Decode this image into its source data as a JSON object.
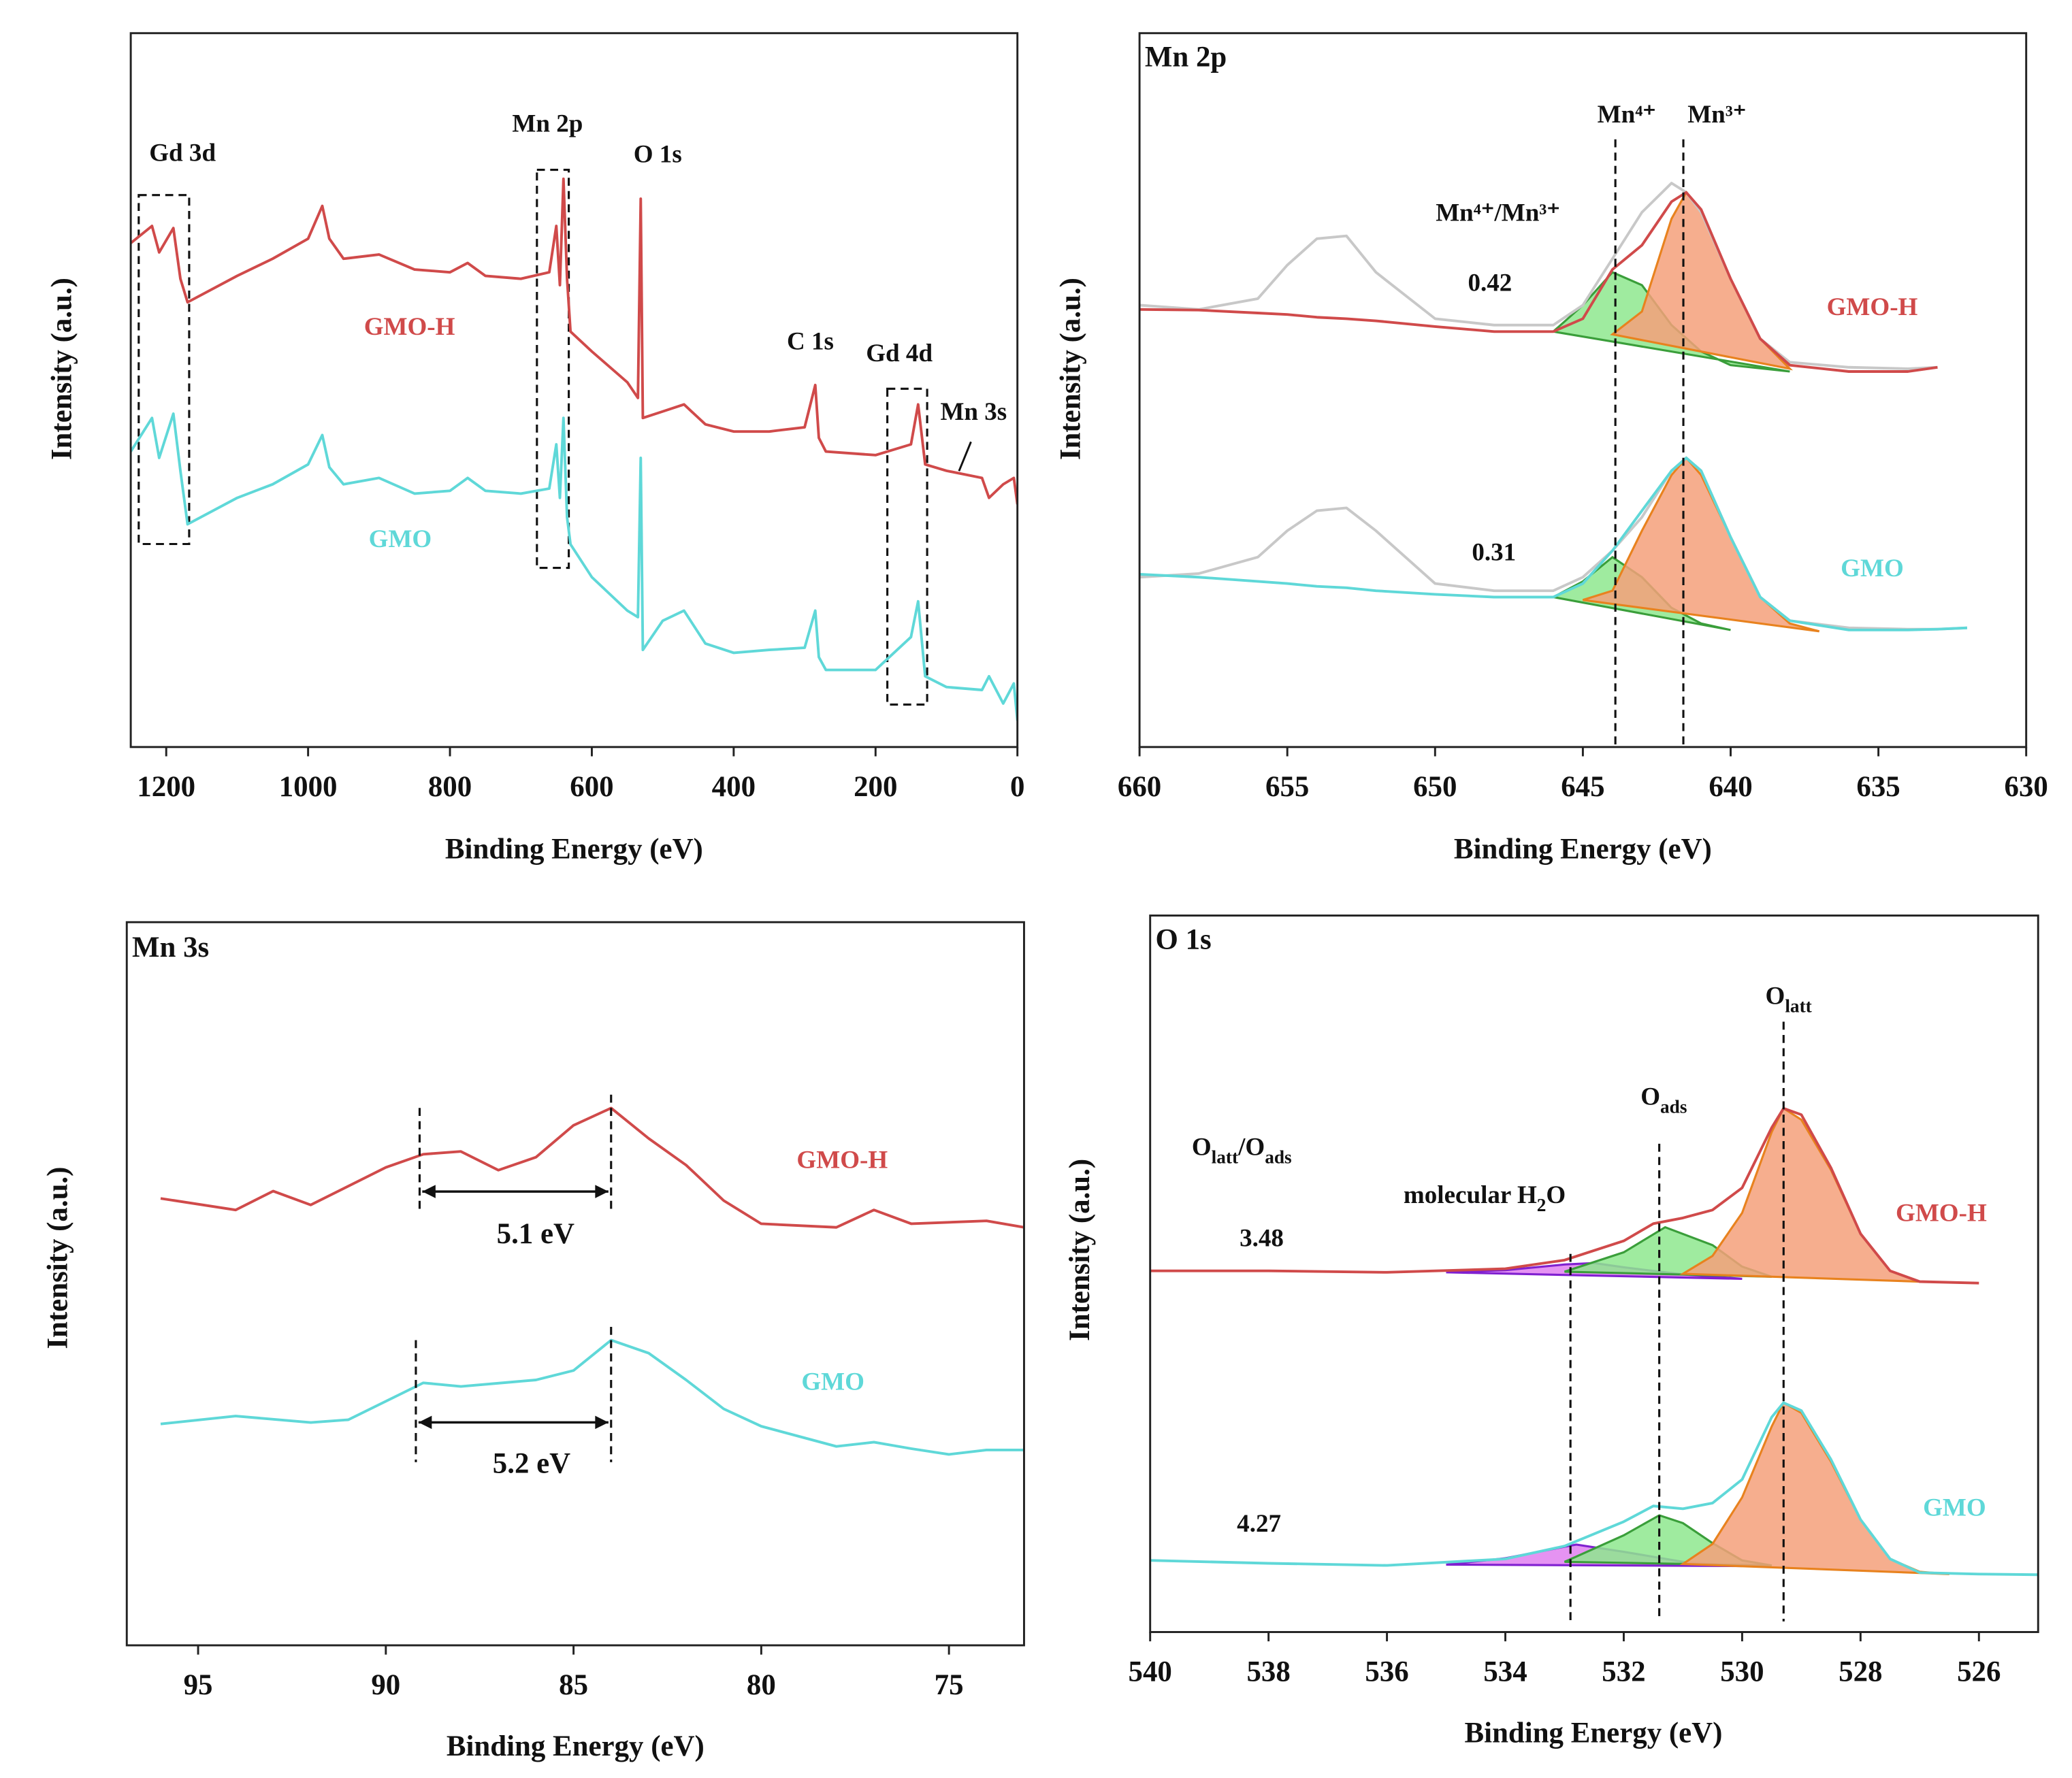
{
  "chart_data": [
    {
      "type": "line",
      "xlabel": "Binding Energy (eV)",
      "ylabel": "Intensity (a.u.)",
      "xlim": [
        1250,
        0
      ],
      "xticks": [
        1200,
        1000,
        800,
        600,
        400,
        200,
        0
      ],
      "ylim": [
        0,
        100
      ],
      "annotations": [
        "Gd 3d",
        "Mn 2p",
        "O 1s",
        "C 1s",
        "Gd 4d",
        "Mn 3s"
      ],
      "series": [
        {
          "name": "GMO-H",
          "color": "#d04a4a",
          "x": [
            1250,
            1220,
            1210,
            1190,
            1180,
            1170,
            1100,
            1050,
            1000,
            980,
            970,
            950,
            900,
            850,
            800,
            775,
            750,
            700,
            660,
            650,
            645,
            640,
            635,
            630,
            600,
            550,
            535,
            531,
            528,
            500,
            470,
            440,
            400,
            350,
            300,
            285,
            280,
            270,
            200,
            150,
            140,
            130,
            100,
            50,
            40,
            20,
            5,
            0
          ],
          "values": [
            70.6,
            73.0,
            69.3,
            72.7,
            65.6,
            62.3,
            66.0,
            68.4,
            71.2,
            75.8,
            71.2,
            68.4,
            69.0,
            66.9,
            66.5,
            67.8,
            66.0,
            65.6,
            66.5,
            73.0,
            64.7,
            79.6,
            65.6,
            58.2,
            55.4,
            51.1,
            48.9,
            76.8,
            46.1,
            47.0,
            48.0,
            45.2,
            44.2,
            44.2,
            44.8,
            50.7,
            43.3,
            41.4,
            40.9,
            42.4,
            48.0,
            39.6,
            38.7,
            37.7,
            34.9,
            36.8,
            37.7,
            34.0
          ]
        },
        {
          "name": "GMO",
          "color": "#5fd8d8",
          "x": [
            1250,
            1220,
            1210,
            1190,
            1180,
            1170,
            1100,
            1050,
            1000,
            980,
            970,
            950,
            900,
            850,
            800,
            775,
            750,
            700,
            660,
            650,
            645,
            640,
            635,
            630,
            600,
            550,
            535,
            531,
            528,
            500,
            470,
            440,
            400,
            350,
            300,
            285,
            280,
            270,
            200,
            150,
            140,
            130,
            100,
            50,
            40,
            20,
            5,
            0
          ],
          "values": [
            41.4,
            46.1,
            40.5,
            46.7,
            38.7,
            31.2,
            34.9,
            36.8,
            39.6,
            43.7,
            39.2,
            36.8,
            37.7,
            35.5,
            35.9,
            37.7,
            35.9,
            35.5,
            36.2,
            42.4,
            34.9,
            46.1,
            32.2,
            28.4,
            23.8,
            19.1,
            18.2,
            40.5,
            13.6,
            17.7,
            19.1,
            14.5,
            13.2,
            13.6,
            13.9,
            19.1,
            12.6,
            10.8,
            10.8,
            15.4,
            20.4,
            9.9,
            8.4,
            8.0,
            9.9,
            6.1,
            8.9,
            3.7
          ]
        }
      ]
    },
    {
      "type": "line",
      "title": "Mn 2p",
      "xlabel": "Binding Energy (eV)",
      "ylabel": "Intensity (a.u.)",
      "xlim": [
        660,
        630
      ],
      "xticks": [
        660,
        655,
        650,
        645,
        640,
        635,
        630
      ],
      "ylim": [
        0,
        100
      ],
      "annotations": [
        "Mn⁴⁺",
        "Mn³⁺",
        "Mn⁴⁺/Mn³⁺",
        "0.42",
        "0.31"
      ],
      "reference_lines": [
        643.9,
        641.6
      ],
      "series": [
        {
          "color": "#3a9e3a",
          "fill": "#8ee88e",
          "x": [
            646,
            645,
            644,
            643,
            642,
            641,
            640,
            638
          ],
          "values": [
            58.2,
            61.9,
            66.5,
            64.7,
            59.1,
            55.4,
            53.5,
            52.6
          ]
        },
        {
          "color": "#e8821e",
          "fill": "#f5a07a",
          "x": [
            644,
            643,
            642,
            641.5,
            641,
            640,
            639,
            638
          ],
          "values": [
            57.8,
            61.0,
            74.0,
            77.7,
            74.9,
            65.6,
            57.2,
            53.0
          ]
        },
        {
          "color": "#3a9e3a",
          "fill": "#8ee88e",
          "x": [
            646,
            645,
            644,
            643,
            642,
            641,
            640
          ],
          "values": [
            21.0,
            23.2,
            26.6,
            23.8,
            19.5,
            17.3,
            16.4
          ]
        },
        {
          "color": "#e8821e",
          "fill": "#f5a07a",
          "x": [
            645,
            644,
            643,
            642,
            641.5,
            641,
            640,
            639,
            638,
            637
          ],
          "values": [
            20.6,
            21.9,
            30.3,
            38.1,
            40.5,
            38.1,
            29.4,
            21.0,
            17.3,
            16.2
          ]
        },
        {
          "color": "#c8c8c8",
          "x": [
            660,
            658,
            656,
            655,
            654,
            653,
            652,
            650,
            648,
            646,
            645,
            644,
            643,
            642,
            641.5,
            641,
            640,
            639,
            638,
            636,
            634,
            633
          ],
          "values": [
            61.9,
            61.3,
            62.8,
            67.5,
            71.2,
            71.6,
            66.5,
            60.0,
            59.1,
            59.1,
            61.9,
            68.4,
            74.9,
            79.0,
            77.7,
            74.9,
            65.6,
            57.2,
            53.9,
            53.2,
            53.0,
            53.2
          ]
        },
        {
          "color": "#c8c8c8",
          "x": [
            660,
            658,
            656,
            655,
            654,
            653,
            652,
            650,
            648,
            646,
            645,
            644,
            643,
            642,
            641.5,
            641,
            640,
            639,
            638,
            636,
            634,
            633,
            632
          ],
          "values": [
            23.8,
            24.3,
            26.6,
            30.3,
            33.1,
            33.5,
            30.3,
            22.9,
            21.9,
            21.9,
            23.8,
            27.5,
            32.2,
            38.7,
            40.5,
            38.7,
            29.4,
            21.0,
            17.7,
            16.7,
            16.5,
            16.5,
            16.7
          ]
        },
        {
          "name": "GMO-H",
          "color": "#d04a4a",
          "x": [
            660,
            658,
            656,
            655,
            654,
            653,
            652,
            650,
            648,
            646,
            645,
            644,
            643,
            642,
            641.5,
            641,
            640,
            639,
            638,
            636,
            634,
            633
          ],
          "values": [
            61.3,
            61.2,
            60.8,
            60.6,
            60.2,
            60.0,
            59.7,
            58.9,
            58.2,
            58.2,
            60.0,
            66.9,
            70.3,
            76.4,
            77.7,
            75.3,
            65.6,
            57.2,
            53.5,
            52.6,
            52.6,
            53.2
          ]
        },
        {
          "name": "GMO",
          "color": "#5fd8d8",
          "x": [
            660,
            658,
            656,
            655,
            654,
            653,
            652,
            650,
            648,
            646,
            645,
            644,
            643,
            642,
            641.5,
            641,
            640,
            639,
            638,
            636,
            634,
            633,
            632
          ],
          "values": [
            24.2,
            23.8,
            23.2,
            22.9,
            22.5,
            22.3,
            21.9,
            21.4,
            21.0,
            21.0,
            22.9,
            27.5,
            33.1,
            38.7,
            40.5,
            38.7,
            29.4,
            21.0,
            17.7,
            16.4,
            16.4,
            16.5,
            16.7
          ]
        }
      ]
    },
    {
      "type": "line",
      "title": "Mn 3s",
      "xlabel": "Binding Energy (eV)",
      "ylabel": "Intensity (a.u.)",
      "xlim": [
        96.9,
        73
      ],
      "xticks": [
        95,
        90,
        85,
        80,
        75
      ],
      "ylim": [
        0,
        100
      ],
      "splittings": [
        {
          "from": 89.1,
          "to": 84,
          "label": "5.1 eV"
        },
        {
          "from": 89.2,
          "to": 84,
          "label": "5.2 eV"
        }
      ],
      "series": [
        {
          "name": "GMO-H",
          "color": "#d04a4a",
          "x": [
            96,
            94,
            93,
            92,
            90,
            89,
            88,
            87,
            86,
            85,
            84,
            83,
            82,
            81,
            80,
            78,
            77,
            76,
            74,
            73
          ],
          "values": [
            61.8,
            60.2,
            62.8,
            60.9,
            66.1,
            67.9,
            68.3,
            65.7,
            67.5,
            71.9,
            74.3,
            70.1,
            66.4,
            61.5,
            58.3,
            57.8,
            60.2,
            58.3,
            58.7,
            57.8
          ]
        },
        {
          "name": "GMO",
          "color": "#5fd8d8",
          "x": [
            96,
            94,
            92,
            91,
            89,
            88,
            86,
            85,
            84,
            83,
            82,
            81,
            80,
            78,
            77,
            76,
            75,
            74,
            73
          ],
          "values": [
            30.6,
            31.7,
            30.8,
            31.2,
            36.3,
            35.8,
            36.7,
            38.0,
            42.2,
            40.4,
            36.7,
            32.7,
            30.3,
            27.5,
            28.1,
            27.2,
            26.4,
            27.0,
            27.0
          ]
        }
      ]
    },
    {
      "type": "line",
      "title": "O 1s",
      "xlabel": "Binding Energy (eV)",
      "ylabel": "Intensity (a.u.)",
      "xlim": [
        540,
        525
      ],
      "xticks": [
        540,
        538,
        536,
        534,
        532,
        530,
        528,
        526
      ],
      "ylim": [
        0,
        100
      ],
      "annotations": [
        {
          "parts": [
            {
              "text": "O"
            },
            {
              "text": "latt",
              "sub": true
            }
          ]
        },
        {
          "parts": [
            {
              "text": "O"
            },
            {
              "text": "ads",
              "sub": true
            }
          ]
        },
        {
          "parts": [
            {
              "text": "O"
            },
            {
              "text": "latt",
              "sub": true
            },
            {
              "text": "/O"
            },
            {
              "text": "ads",
              "sub": true
            }
          ]
        },
        {
          "parts": [
            {
              "text": "molecular H"
            },
            {
              "text": "2",
              "sub": true
            },
            {
              "text": "O"
            }
          ]
        },
        "3.48",
        "4.27"
      ],
      "reference_lines": [
        532.9,
        531.4,
        529.3
      ],
      "series": [
        {
          "color": "#8020d0",
          "fill": "#e080f0",
          "x": [
            535,
            534,
            533,
            532.5,
            532,
            531,
            530
          ],
          "values": [
            50.2,
            50.5,
            51.3,
            51.5,
            50.9,
            49.9,
            49.3
          ]
        },
        {
          "color": "#3a9e3a",
          "fill": "#8ee88e",
          "x": [
            533,
            532,
            531.3,
            530.5,
            530,
            529.5
          ],
          "values": [
            50.3,
            53.0,
            56.5,
            54.0,
            51.0,
            49.6
          ]
        },
        {
          "color": "#e8821e",
          "fill": "#f5a07a",
          "x": [
            531,
            530.5,
            530,
            529.5,
            529.3,
            529,
            528.5,
            528,
            527.5,
            527
          ],
          "values": [
            50.0,
            52.5,
            58.5,
            69.8,
            73.1,
            71.5,
            64.5,
            55.6,
            50.4,
            48.9
          ]
        },
        {
          "color": "#8020d0",
          "fill": "#e080f0",
          "x": [
            535,
            534,
            533,
            532.8,
            532,
            531,
            530
          ],
          "values": [
            9.4,
            10.3,
            11.9,
            12.2,
            11.2,
            9.8,
            9.2
          ]
        },
        {
          "color": "#3a9e3a",
          "fill": "#8ee88e",
          "x": [
            533,
            532,
            531.4,
            531,
            530.5,
            530,
            529.5
          ],
          "values": [
            9.8,
            13.5,
            16.3,
            15.2,
            12.4,
            10.0,
            9.3
          ]
        },
        {
          "color": "#e8821e",
          "fill": "#f5a07a",
          "x": [
            531,
            530.5,
            530,
            529.5,
            529.3,
            529,
            528.5,
            528,
            527.5,
            527,
            526.5
          ],
          "values": [
            9.5,
            12.3,
            18.8,
            28.7,
            32.0,
            30.6,
            23.8,
            15.7,
            10.2,
            8.4,
            8.1
          ]
        },
        {
          "name": "GMO-H",
          "color": "#d04a4a",
          "x": [
            540,
            538,
            536,
            534,
            533,
            532,
            531.5,
            531,
            530.5,
            530,
            529.5,
            529.3,
            529,
            528.5,
            528,
            527.5,
            527,
            526
          ],
          "values": [
            50.4,
            50.4,
            50.2,
            50.7,
            51.9,
            54.6,
            57.0,
            57.8,
            58.9,
            62.0,
            70.4,
            73.1,
            72.2,
            64.8,
            55.6,
            50.4,
            48.9,
            48.7
          ]
        },
        {
          "name": "GMO",
          "color": "#5fd8d8",
          "x": [
            540,
            538,
            536,
            534,
            533,
            532,
            531.5,
            531,
            530.5,
            530,
            529.5,
            529.3,
            529,
            528.5,
            528,
            527.5,
            527,
            526,
            525
          ],
          "values": [
            10.0,
            9.6,
            9.3,
            10.2,
            12.0,
            15.4,
            17.6,
            17.2,
            18.0,
            21.3,
            30.0,
            32.0,
            30.9,
            24.1,
            15.7,
            10.2,
            8.3,
            8.1,
            8.0
          ]
        }
      ]
    }
  ]
}
